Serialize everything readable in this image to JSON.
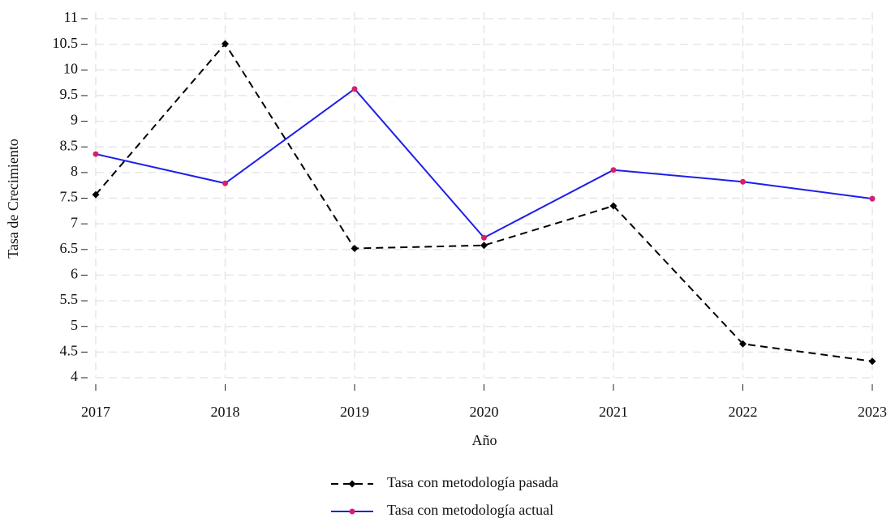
{
  "chart_data": {
    "type": "line",
    "xlabel": "Año",
    "ylabel": "Tasa de Crecimiento",
    "categories": [
      "2017",
      "2018",
      "2019",
      "2020",
      "2021",
      "2022",
      "2023"
    ],
    "series": [
      {
        "name": "Tasa con metodología pasada",
        "color": "#000000",
        "marker_color": "#000000",
        "linestyle": "dashed",
        "marker": "diamond",
        "values": [
          7.57,
          10.51,
          6.52,
          6.58,
          7.35,
          4.66,
          4.32
        ]
      },
      {
        "name": "Tasa con metodología actual",
        "color": "#1f1fe8",
        "marker_color": "#d6206b",
        "linestyle": "solid",
        "marker": "circle",
        "values": [
          8.36,
          7.79,
          9.63,
          6.73,
          8.05,
          7.82,
          7.49
        ]
      }
    ],
    "ylim": [
      4,
      11
    ],
    "yticks": [
      4,
      4.5,
      5,
      5.5,
      6,
      6.5,
      7,
      7.5,
      8,
      8.5,
      9,
      9.5,
      10,
      10.5,
      11
    ],
    "grid": true,
    "legend": "bottom"
  }
}
